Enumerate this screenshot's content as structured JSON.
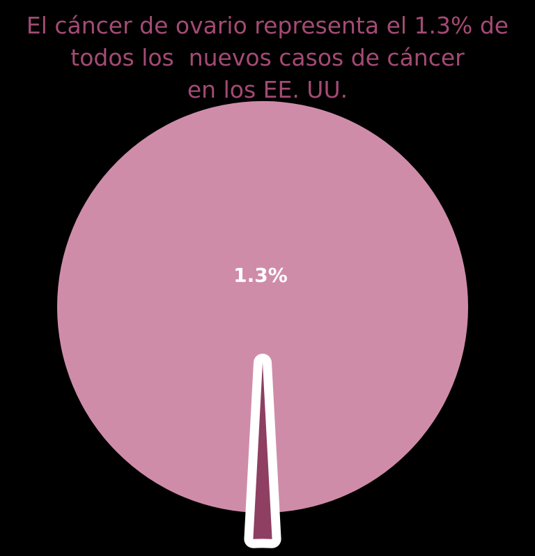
{
  "title_lines": [
    "El cáncer de ovario representa el 1.3% de",
    "todos los  nuevos casos de cáncer",
    "en los EE. UU."
  ],
  "colors": {
    "background": "#000000",
    "title": "#a44a74",
    "main_slice": "#cf8ca9",
    "highlight_slice": "#8e3f62",
    "outline": "#ffffff",
    "label": "#ffffff"
  },
  "chart_data": {
    "type": "pie",
    "slices": [
      {
        "name": "",
        "value": 98.7
      },
      {
        "name": "",
        "value": 1.3,
        "label": "1.3%",
        "highlight": true
      }
    ]
  }
}
